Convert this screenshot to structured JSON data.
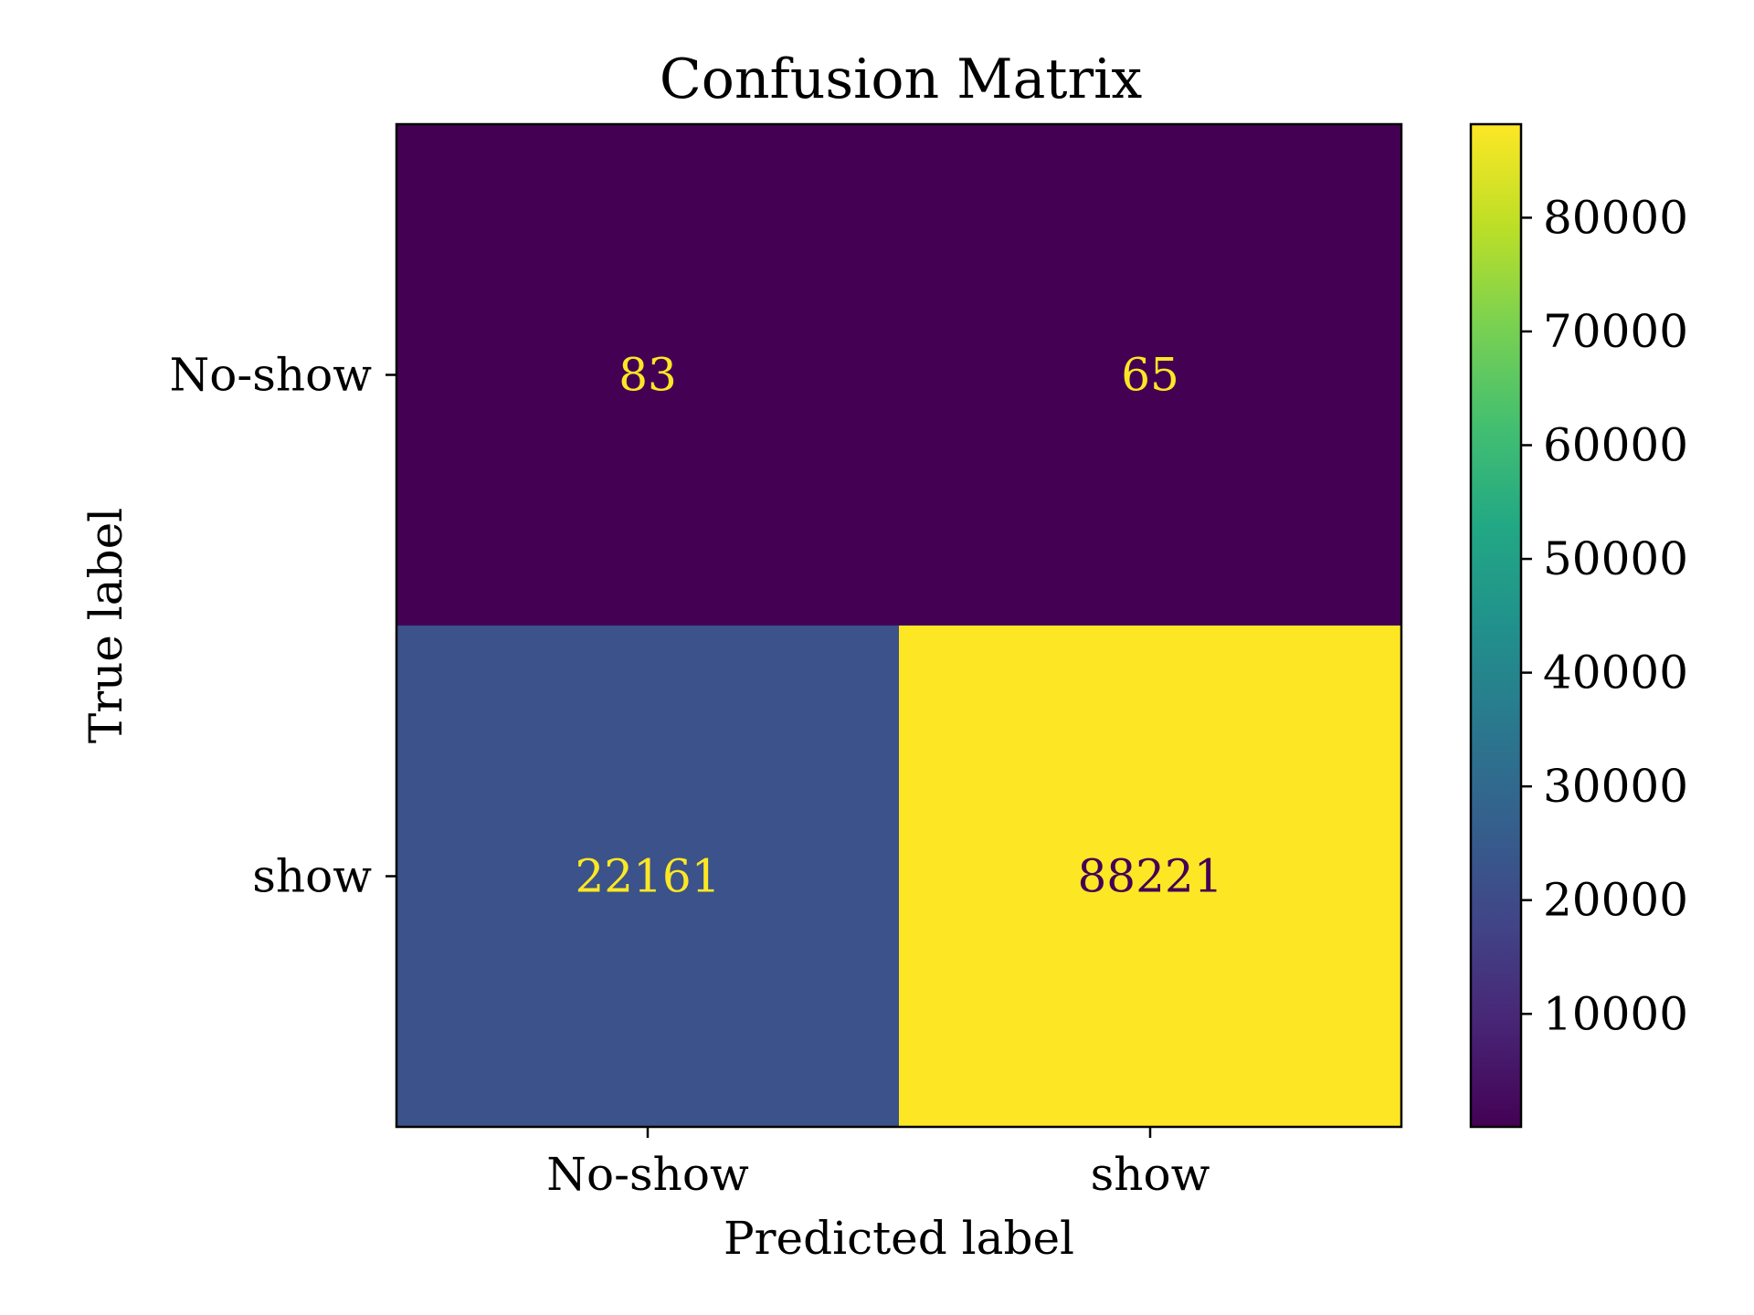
{
  "chart_data": {
    "type": "heatmap",
    "title": "Confusion Matrix",
    "xlabel": "Predicted label",
    "ylabel": "True label",
    "x_categories": [
      "No-show",
      "show"
    ],
    "y_categories": [
      "No-show",
      "show"
    ],
    "values": [
      [
        83,
        65
      ],
      [
        22161,
        88221
      ]
    ],
    "colormap": "viridis",
    "colorbar": {
      "ticks": [
        10000,
        20000,
        30000,
        40000,
        50000,
        60000,
        70000,
        80000
      ],
      "tick_labels": [
        "10000",
        "20000",
        "30000",
        "40000",
        "50000",
        "60000",
        "70000",
        "80000"
      ],
      "range": [
        65,
        88221
      ]
    },
    "text_colors": {
      "on_dark": "#fde725",
      "on_light": "#440154"
    },
    "grid": false,
    "legend": "colorbar-right"
  }
}
